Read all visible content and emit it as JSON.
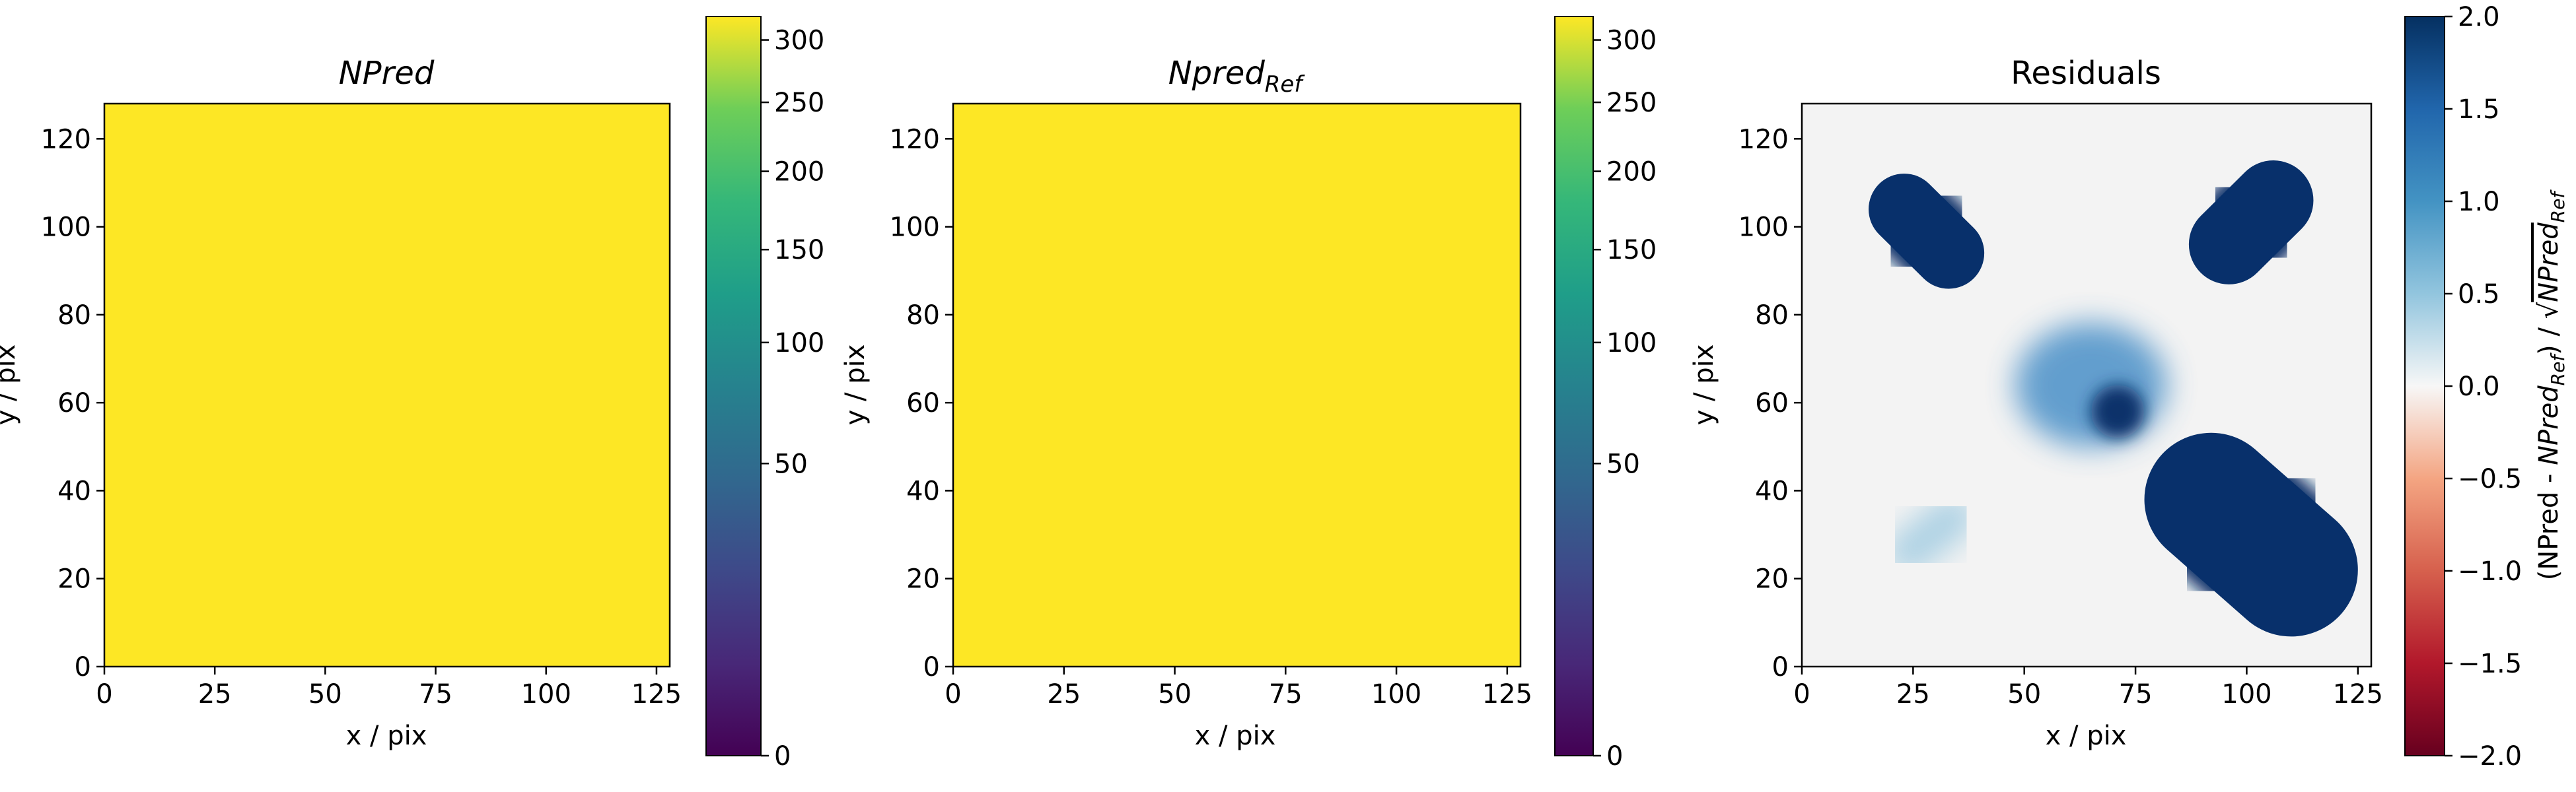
{
  "chart_data": [
    {
      "type": "heatmap",
      "title": "NPred",
      "title_style": "italic",
      "xlabel": "x / pix",
      "ylabel": "y / pix",
      "xlim": [
        0,
        128
      ],
      "ylim": [
        0,
        128
      ],
      "xticks": [
        "0",
        "25",
        "50",
        "75",
        "100",
        "125"
      ],
      "yticks": [
        "0",
        "20",
        "40",
        "60",
        "80",
        "100",
        "120"
      ],
      "colormap": "viridis",
      "fill_color": "#fde725",
      "value": 320,
      "colorbar": {
        "scale": "sqrt",
        "range": [
          0,
          320
        ],
        "ticks": [
          "0",
          "50",
          "100",
          "150",
          "200",
          "250",
          "300"
        ]
      }
    },
    {
      "type": "heatmap",
      "title": "Npred",
      "title_sub": "Ref",
      "title_style": "italic",
      "xlabel": "x / pix",
      "ylabel": "y / pix",
      "xlim": [
        0,
        128
      ],
      "ylim": [
        0,
        128
      ],
      "xticks": [
        "0",
        "25",
        "50",
        "75",
        "100",
        "125"
      ],
      "yticks": [
        "0",
        "20",
        "40",
        "60",
        "80",
        "100",
        "120"
      ],
      "colormap": "viridis",
      "fill_color": "#fde725",
      "value": 320,
      "colorbar": {
        "scale": "sqrt",
        "range": [
          0,
          320
        ],
        "ticks": [
          "0",
          "50",
          "100",
          "150",
          "200",
          "250",
          "300"
        ]
      }
    },
    {
      "type": "heatmap",
      "title": "Residuals",
      "xlabel": "x / pix",
      "ylabel": "y / pix",
      "xlim": [
        0,
        128
      ],
      "ylim": [
        0,
        128
      ],
      "xticks": [
        "0",
        "25",
        "50",
        "75",
        "100",
        "125"
      ],
      "yticks": [
        "0",
        "20",
        "40",
        "60",
        "80",
        "100",
        "120"
      ],
      "colormap": "RdBu",
      "background_color": "#f3f3f3",
      "colorbar": {
        "range": [
          -2.0,
          2.0
        ],
        "ticks": [
          "−2.0",
          "−1.5",
          "−1.0",
          "−0.5",
          "0.0",
          "0.5",
          "1.0",
          "1.5",
          "2.0"
        ],
        "label": "(NPred - NPred_Ref) / √NPred_Ref"
      },
      "features": [
        {
          "kind": "capsule",
          "x1": 23,
          "y1": 104,
          "x2": 33,
          "y2": 94,
          "radius": 10,
          "value": 2.0
        },
        {
          "kind": "capsule",
          "x1": 96,
          "y1": 96,
          "x2": 106,
          "y2": 106,
          "radius": 11,
          "value": 2.0
        },
        {
          "kind": "capsule",
          "x1": 92,
          "y1": 38,
          "x2": 110,
          "y2": 22,
          "radius": 17,
          "value": 2.0
        },
        {
          "kind": "blob",
          "x": 65,
          "y": 64,
          "rx": 17,
          "ry": 14,
          "value": 1.2
        },
        {
          "kind": "blob",
          "x": 71,
          "y": 58,
          "rx": 6,
          "ry": 6,
          "value": 2.0
        },
        {
          "kind": "capsule",
          "x1": 24,
          "y1": 26,
          "x2": 34,
          "y2": 34,
          "radius": 5,
          "value": 0.6
        }
      ]
    }
  ]
}
